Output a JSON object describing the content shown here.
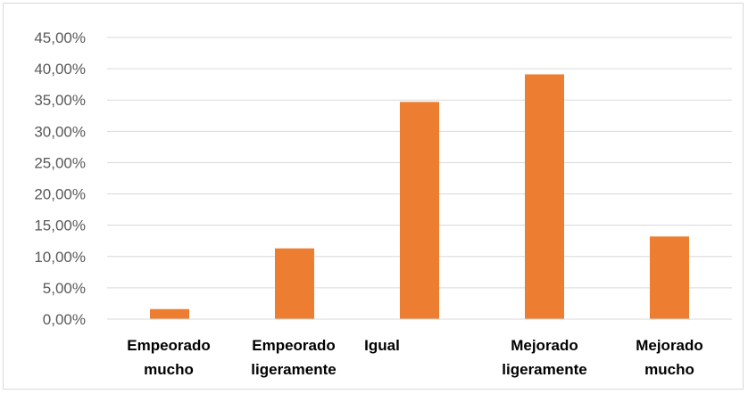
{
  "chart_data": {
    "type": "bar",
    "categories": [
      [
        "Empeorado",
        "mucho"
      ],
      [
        "Empeorado",
        "ligeramente"
      ],
      [
        "Igual"
      ],
      [
        "Mejorado",
        "ligeramente"
      ],
      [
        "Mejorado",
        "mucho"
      ]
    ],
    "values": [
      1.6,
      11.3,
      34.7,
      39.1,
      13.2
    ],
    "yticks": [
      "0,00%",
      "5,00%",
      "10,00%",
      "15,00%",
      "20,00%",
      "25,00%",
      "30,00%",
      "35,00%",
      "40,00%",
      "45,00%"
    ],
    "ylim": [
      0,
      45
    ],
    "ytick_step": 5,
    "grid": true,
    "legend": "none",
    "title": "",
    "xlabel": "",
    "ylabel": "",
    "colors": {
      "bar": "#ED7D31",
      "grid": "#d9d9d9",
      "axis": "#d9d9d9"
    }
  }
}
